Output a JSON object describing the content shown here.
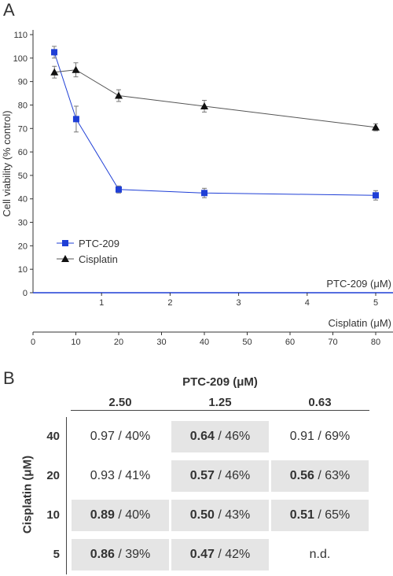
{
  "panels": {
    "a": "A",
    "b": "B"
  },
  "chart_data": {
    "type": "line",
    "ylabel": "Cell viability (% control)",
    "ylim": [
      0,
      110
    ],
    "yticks": [
      "0",
      "10",
      "20",
      "30",
      "40",
      "50",
      "60",
      "70",
      "80",
      "90",
      "100",
      "110"
    ],
    "axes": [
      {
        "label": "PTC-209 (μM)",
        "xlim": [
          0,
          5
        ],
        "ticks": [
          "1",
          "2",
          "3",
          "4",
          "5"
        ],
        "tick_values": [
          1,
          2,
          3,
          4,
          5
        ],
        "color": "#1f3fd6"
      },
      {
        "label": "Cisplatin (μM)",
        "xlim": [
          0,
          80
        ],
        "ticks": [
          "0",
          "10",
          "20",
          "30",
          "40",
          "50",
          "60",
          "70",
          "80"
        ],
        "tick_values": [
          0,
          10,
          20,
          30,
          40,
          50,
          60,
          70,
          80
        ],
        "color": "#333333"
      }
    ],
    "series": [
      {
        "name": "PTC-209",
        "axis": 0,
        "marker": "square",
        "color": "#1f3fd6",
        "x": [
          0.31,
          0.63,
          1.25,
          2.5,
          5
        ],
        "y": [
          102.5,
          74,
          44,
          42.5,
          41.5
        ],
        "err": [
          2.5,
          5.5,
          1.5,
          2,
          2
        ]
      },
      {
        "name": "Cisplatin",
        "axis": 1,
        "marker": "triangle",
        "color": "#555555",
        "x": [
          5,
          10,
          20,
          40,
          80
        ],
        "y": [
          94,
          95,
          84,
          79.5,
          70.5
        ],
        "err": [
          2.5,
          3,
          2.5,
          2.5,
          1.5
        ]
      }
    ],
    "legend_position": "bottom-left"
  },
  "table": {
    "title": "PTC-209 (μM)",
    "row_axis_label": "Cisplatin (μM)",
    "columns": [
      "2.50",
      "1.25",
      "0.63"
    ],
    "rows": [
      {
        "label": "40",
        "cells": [
          {
            "ci": "0.97",
            "pct": " / 40%",
            "bold": false,
            "shaded": false
          },
          {
            "ci": "0.64",
            "pct": " / 46%",
            "bold": true,
            "shaded": true
          },
          {
            "ci": "0.91",
            "pct": " / 69%",
            "bold": false,
            "shaded": false
          }
        ]
      },
      {
        "label": "20",
        "cells": [
          {
            "ci": "0.93",
            "pct": " / 41%",
            "bold": false,
            "shaded": false
          },
          {
            "ci": "0.57",
            "pct": " / 46%",
            "bold": true,
            "shaded": true
          },
          {
            "ci": "0.56",
            "pct": " / 63%",
            "bold": true,
            "shaded": true
          }
        ]
      },
      {
        "label": "10",
        "cells": [
          {
            "ci": "0.89",
            "pct": " / 40%",
            "bold": true,
            "shaded": true
          },
          {
            "ci": "0.50",
            "pct": " / 43%",
            "bold": true,
            "shaded": true
          },
          {
            "ci": "0.51",
            "pct": " / 65%",
            "bold": true,
            "shaded": true
          }
        ]
      },
      {
        "label": "5",
        "cells": [
          {
            "ci": "0.86",
            "pct": " / 39%",
            "bold": true,
            "shaded": true
          },
          {
            "ci": "0.47",
            "pct": " / 42%",
            "bold": true,
            "shaded": true
          },
          {
            "ci": "n.d.",
            "pct": "",
            "bold": false,
            "shaded": false
          }
        ]
      }
    ]
  }
}
